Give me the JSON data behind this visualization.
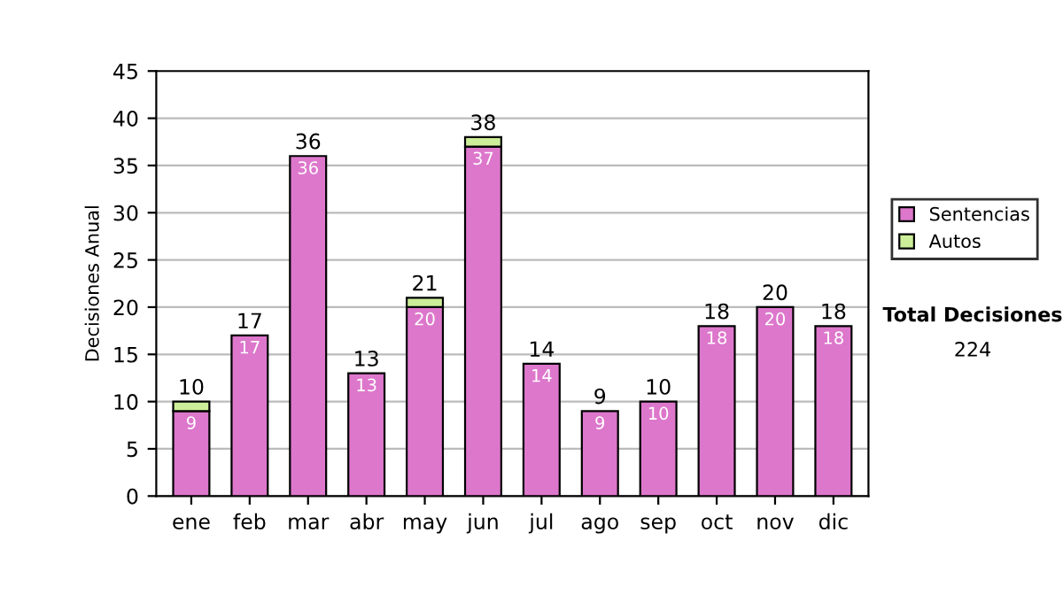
{
  "chart_data": {
    "type": "bar",
    "stacked": true,
    "ylabel": "Decisiones Anual",
    "categories": [
      "ene",
      "feb",
      "mar",
      "abr",
      "may",
      "jun",
      "jul",
      "ago",
      "sep",
      "oct",
      "nov",
      "dic"
    ],
    "series": [
      {
        "name": "Sentencias",
        "color": "#dd77cc",
        "values": [
          9,
          17,
          36,
          13,
          20,
          37,
          14,
          9,
          10,
          18,
          20,
          18
        ],
        "value_labels": [
          "9",
          "17",
          "36",
          "13",
          "20",
          "37",
          "14",
          "9",
          "10",
          "18",
          "20",
          "18"
        ]
      },
      {
        "name": "Autos",
        "color": "#ccee99",
        "values": [
          1,
          0,
          0,
          0,
          1,
          1,
          0,
          0,
          0,
          0,
          0,
          0
        ]
      }
    ],
    "totals": [
      "10",
      "17",
      "36",
      "13",
      "21",
      "38",
      "14",
      "9",
      "10",
      "18",
      "20",
      "18"
    ],
    "ylim": [
      0,
      45
    ],
    "yticks": [
      0,
      5,
      10,
      15,
      20,
      25,
      30,
      35,
      40,
      45
    ],
    "grid": "y",
    "legend": "right",
    "annotations": [
      "Total Decisiones",
      "224"
    ]
  }
}
